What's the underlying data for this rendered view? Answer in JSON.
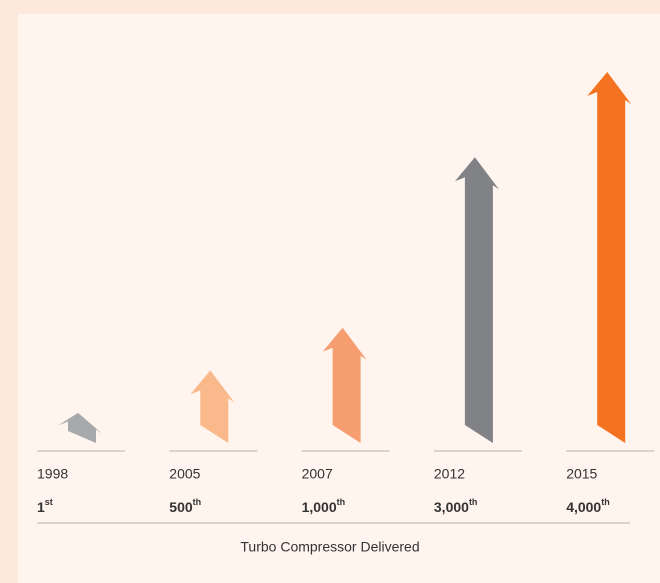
{
  "chart_data": {
    "type": "arrow",
    "categories": [
      "1998",
      "2005",
      "2007",
      "2012",
      "2015"
    ],
    "values": [
      1,
      500,
      1000,
      3000,
      4000
    ],
    "value_labels": [
      "1st",
      "500th",
      "1,000th",
      "3,000th",
      "4,000th"
    ],
    "colors": [
      "#a7a9ac",
      "#f9b98a",
      "#f69e70",
      "#808285",
      "#f47321"
    ],
    "xlabel": "Turbo Compressor Delivered"
  }
}
